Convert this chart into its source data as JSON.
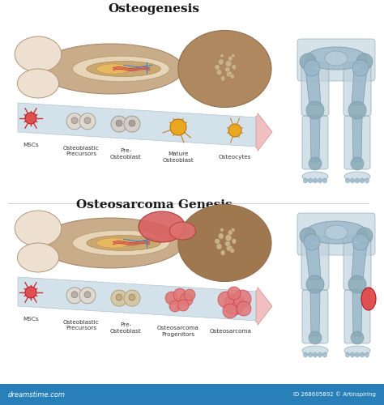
{
  "title1": "Osteogenesis",
  "title2": "Osteosarcoma Genesis",
  "bg_color": "#ffffff",
  "bone_cortex": "#c9ad8a",
  "bone_periosteum": "#d4bc9a",
  "bone_light": "#e8d5b7",
  "bone_epiphysis_left": "#ede0d0",
  "bone_spongy_top": "#b08860",
  "bone_spongy_bottom": "#a07850",
  "marrow_orange": "#d4956a",
  "marrow_yellow": "#e8b860",
  "vessel_red": "#cc4444",
  "vessel_blue": "#4488cc",
  "vessel_green": "#44aa66",
  "spongy_hole": "#c8b090",
  "arrow_ribbon": "#c8dde8",
  "arrow_pink": "#f0b8b8",
  "msc_red": "#e04444",
  "precursor_gray": "#c8c0b4",
  "precursor_nucleus": "#88807a",
  "osteoblast_yellow": "#e8a820",
  "tumor_pink": "#e87070",
  "tumor_dark": "#cc4455",
  "xray_body": "#bcd0dc",
  "xray_bone": "#9ab8ca",
  "xray_joint": "#8aaab8",
  "tumor_red": "#e04040",
  "watermark_bg": "#2980b9",
  "watermark_text": "dreamstime.com",
  "watermark_id": "ID 268605892 © Artinspiring",
  "labels_top": [
    "MSCs",
    "Osteoblastic\nPrecursors",
    "Pre-\nOsteoblast",
    "Mature\nOsteoblast",
    "Osteocytes"
  ],
  "labels_bottom": [
    "MSCs",
    "Osteoblastic\nPrecursors",
    "Pre-\nOsteoblast",
    "Osteosarcoma\nProgenitors",
    "Osteosarcoma"
  ],
  "font_title": 11,
  "font_label": 5.2
}
